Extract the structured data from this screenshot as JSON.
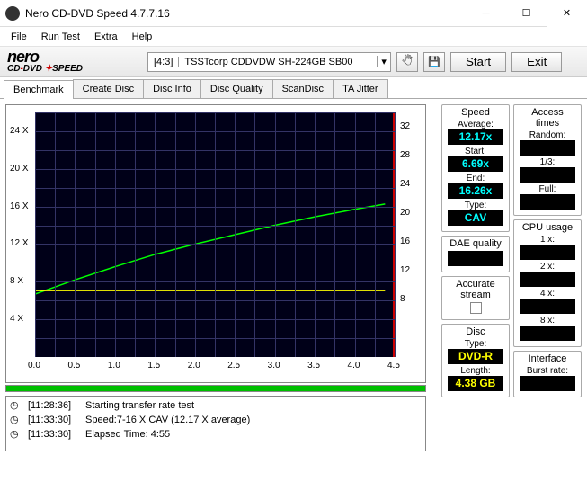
{
  "window": {
    "title": "Nero CD-DVD Speed 4.7.7.16"
  },
  "menu": {
    "file": "File",
    "runtest": "Run Test",
    "extra": "Extra",
    "help": "Help"
  },
  "brand": {
    "nero": "nero",
    "sub_cd": "CD",
    "sub_dvd": "DVD",
    "sub_speed": "SPEED"
  },
  "drive": {
    "ratio": "[4:3]",
    "text": "TSSTcorp CDDVDW SH-224GB SB00"
  },
  "buttons": {
    "start": "Start",
    "exit": "Exit"
  },
  "tabs": {
    "benchmark": "Benchmark",
    "createdisc": "Create Disc",
    "discinfo": "Disc Info",
    "discquality": "Disc Quality",
    "scandisc": "ScanDisc",
    "tajitter": "TA Jitter"
  },
  "chart": {
    "background": "#000018",
    "grid_color": "#333366",
    "red_line_color": "#cc0000",
    "y_left_ticks": [
      "24 X",
      "20 X",
      "16 X",
      "12 X",
      "8 X",
      "4 X"
    ],
    "y_left_max": 26,
    "y_right_ticks": [
      "32",
      "28",
      "24",
      "20",
      "16",
      "12",
      "8"
    ],
    "y_right_max": 34,
    "x_ticks": [
      "0.0",
      "0.5",
      "1.0",
      "1.5",
      "2.0",
      "2.5",
      "3.0",
      "3.5",
      "4.0",
      "4.5"
    ],
    "x_max": 4.5,
    "green_line": {
      "color": "#00ff00",
      "points": [
        [
          0,
          6.69
        ],
        [
          0.5,
          8.2
        ],
        [
          1.0,
          9.6
        ],
        [
          1.5,
          10.9
        ],
        [
          2.0,
          12.0
        ],
        [
          2.5,
          13.0
        ],
        [
          3.0,
          14.0
        ],
        [
          3.5,
          14.9
        ],
        [
          4.0,
          15.7
        ],
        [
          4.38,
          16.26
        ]
      ]
    },
    "yellow_line": {
      "color": "#ffff00",
      "y_value_right": 9.2,
      "x_range": [
        0,
        4.38
      ]
    }
  },
  "log": [
    {
      "ts": "[11:28:36]",
      "msg": "Starting transfer rate test"
    },
    {
      "ts": "[11:33:30]",
      "msg": "Speed:7-16 X CAV (12.17 X average)"
    },
    {
      "ts": "[11:33:30]",
      "msg": "Elapsed Time:  4:55"
    }
  ],
  "panels": {
    "speed": {
      "title": "Speed",
      "average_label": "Average:",
      "average": "12.17x",
      "start_label": "Start:",
      "start": "6.69x",
      "end_label": "End:",
      "end": "16.26x",
      "type_label": "Type:",
      "type": "CAV"
    },
    "dae": {
      "title": "DAE quality",
      "value": ""
    },
    "accurate": {
      "title": "Accurate stream"
    },
    "disc": {
      "title": "Disc",
      "type_label": "Type:",
      "type": "DVD-R",
      "length_label": "Length:",
      "length": "4.38 GB"
    },
    "access": {
      "title": "Access times",
      "random_label": "Random:",
      "random": "",
      "third_label": "1/3:",
      "third": "",
      "full_label": "Full:",
      "full": ""
    },
    "cpu": {
      "title": "CPU usage",
      "labels": [
        "1 x:",
        "2 x:",
        "4 x:",
        "8 x:"
      ],
      "values": [
        "",
        "",
        "",
        ""
      ]
    },
    "interface": {
      "title": "Interface",
      "burst_label": "Burst rate:",
      "burst": ""
    }
  }
}
